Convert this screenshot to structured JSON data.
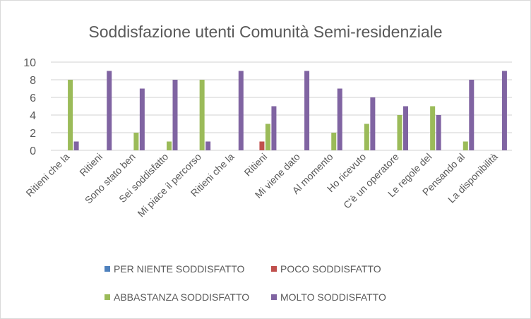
{
  "chart_data": {
    "type": "bar",
    "title": "Soddisfazione utenti Comunità Semi-residenziale",
    "xlabel": "",
    "ylabel": "",
    "ylim": [
      0,
      10
    ],
    "yticks": [
      0,
      2,
      4,
      6,
      8,
      10
    ],
    "grid": true,
    "legend_position": "bottom",
    "categories": [
      "Ritieni che la",
      "Ritieni",
      "Sono stato ben",
      "Sei soddisfatto",
      "Mi piace il percorso",
      "Ritieni che la",
      "Ritieni",
      "Mi viene dato",
      "Al momento",
      "Ho ricevuto",
      "C'è un operatore",
      "Le regole del",
      "Pensando al",
      "La disponibilità"
    ],
    "series": [
      {
        "name": "PER NIENTE SODDISFATTO",
        "color": "#4F81BD",
        "values": [
          0,
          0,
          0,
          0,
          0,
          0,
          0,
          0,
          0,
          0,
          0,
          0,
          0,
          0
        ]
      },
      {
        "name": "POCO SODDISFATTO",
        "color": "#C0504D",
        "values": [
          0,
          0,
          0,
          0,
          0,
          0,
          1,
          0,
          0,
          0,
          0,
          0,
          0,
          0
        ]
      },
      {
        "name": "ABBASTANZA SODDISFATTO",
        "color": "#9BBB59",
        "values": [
          8,
          0,
          2,
          1,
          8,
          0,
          3,
          0,
          2,
          3,
          4,
          5,
          1,
          0
        ]
      },
      {
        "name": "MOLTO SODDISFATTO",
        "color": "#8064A2",
        "values": [
          1,
          9,
          7,
          8,
          1,
          9,
          5,
          9,
          7,
          6,
          5,
          4,
          8,
          9
        ]
      }
    ]
  }
}
